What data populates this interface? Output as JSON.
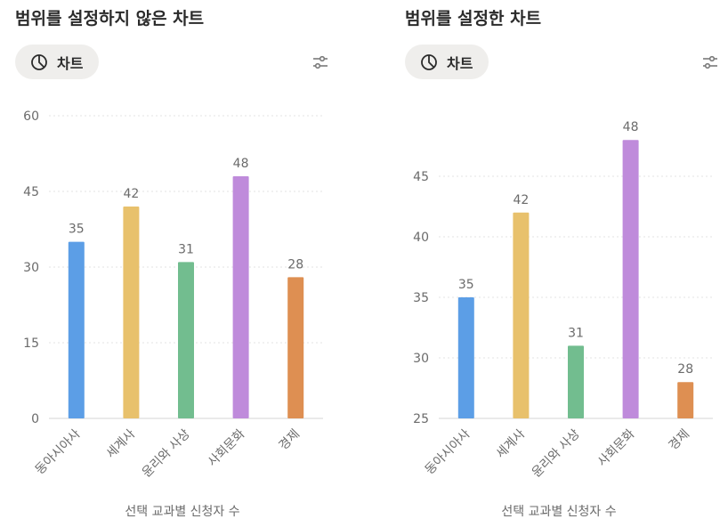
{
  "chart_data": [
    {
      "type": "bar",
      "title": "범위를 설정하지 않은 차트",
      "button_label": "차트",
      "categories": [
        "동아시아사",
        "세계사",
        "윤리와 사상",
        "사회문화",
        "경제"
      ],
      "values": [
        35,
        42,
        31,
        48,
        28
      ],
      "colors": [
        "#5c9ee6",
        "#e8c16c",
        "#72bd8f",
        "#bf8bdb",
        "#de8f52"
      ],
      "xlabel": "선택 교과별 신청자 수",
      "ylabel": "",
      "ylim": [
        0,
        60
      ],
      "yticks": [
        0,
        15,
        30,
        45,
        60
      ],
      "grid": true,
      "legend": "none"
    },
    {
      "type": "bar",
      "title": "범위를 설정한 차트",
      "button_label": "차트",
      "categories": [
        "동아시아사",
        "세계사",
        "윤리와 사상",
        "사회문화",
        "경제"
      ],
      "values": [
        35,
        42,
        31,
        48,
        28
      ],
      "colors": [
        "#5c9ee6",
        "#e8c16c",
        "#72bd8f",
        "#bf8bdb",
        "#de8f52"
      ],
      "xlabel": "선택 교과별 신청자 수",
      "ylabel": "",
      "ylim": [
        25,
        50
      ],
      "yticks": [
        25,
        30,
        35,
        40,
        45
      ],
      "grid": true,
      "legend": "none"
    }
  ]
}
